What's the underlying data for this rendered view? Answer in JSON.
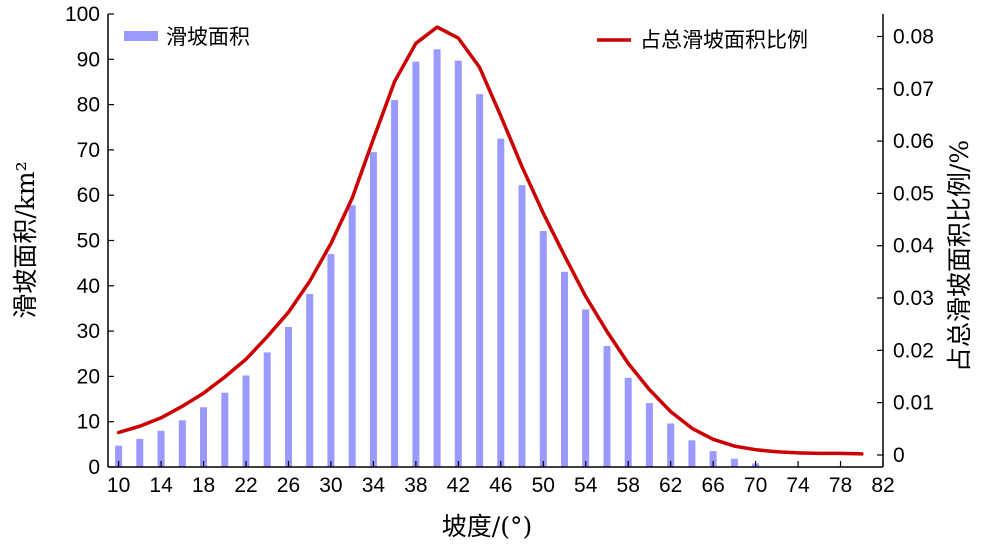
{
  "chart_data": {
    "type": "bar+line",
    "x": [
      10,
      12,
      14,
      16,
      18,
      20,
      22,
      24,
      26,
      28,
      30,
      32,
      34,
      36,
      38,
      40,
      42,
      44,
      46,
      48,
      50,
      52,
      54,
      56,
      58,
      60,
      62,
      64,
      66,
      68,
      70,
      72,
      74,
      76,
      78,
      80
    ],
    "x_tick_labels": [
      "10",
      "14",
      "18",
      "22",
      "26",
      "30",
      "34",
      "38",
      "42",
      "46",
      "50",
      "54",
      "58",
      "62",
      "66",
      "70",
      "74",
      "78",
      "82"
    ],
    "xlabel": "坡度/(°)",
    "xlim": [
      9,
      82
    ],
    "y_left": {
      "label": "滑坡面积/km²",
      "ylim": [
        0,
        100
      ],
      "ticks": [
        "0",
        "10",
        "20",
        "30",
        "40",
        "50",
        "60",
        "70",
        "80",
        "90",
        "100"
      ]
    },
    "y_right": {
      "label": "占总滑坡面积比例/%",
      "ylim": [
        -0.0023,
        0.0843
      ],
      "ticks": [
        "0",
        "0.01",
        "0.02",
        "0.03",
        "0.04",
        "0.05",
        "0.06",
        "0.07",
        "0.08"
      ]
    },
    "series": [
      {
        "name": "滑坡面积",
        "type": "bar",
        "axis": "left",
        "color": "#9999ff",
        "values": [
          4.7,
          6.2,
          8.0,
          10.3,
          13.2,
          16.4,
          20.2,
          25.3,
          30.9,
          38.2,
          47.0,
          57.8,
          69.5,
          81.0,
          89.5,
          92.2,
          89.7,
          82.3,
          72.5,
          62.2,
          52.1,
          43.1,
          34.8,
          26.7,
          19.7,
          14.1,
          9.6,
          5.9,
          3.5,
          1.8,
          0.8,
          0.0,
          0.0,
          0.0,
          0.0,
          0.0
        ]
      },
      {
        "name": "占总滑坡面积比例",
        "type": "line",
        "axis": "right",
        "color": "#cc0000",
        "values": [
          0.0043,
          0.0055,
          0.0071,
          0.0093,
          0.0118,
          0.0149,
          0.0183,
          0.0226,
          0.0273,
          0.0332,
          0.0404,
          0.0491,
          0.0604,
          0.0714,
          0.0787,
          0.0818,
          0.0797,
          0.0741,
          0.0648,
          0.0551,
          0.0462,
          0.0381,
          0.0303,
          0.0236,
          0.0175,
          0.0125,
          0.0083,
          0.0051,
          0.003,
          0.0017,
          0.001,
          0.0006,
          0.0004,
          0.0003,
          0.0003,
          0.0002
        ]
      }
    ],
    "legend": {
      "left": {
        "label": "滑坡面积",
        "placement": "top-left"
      },
      "right": {
        "label": "占总滑坡面积比例",
        "placement": "top-right"
      }
    },
    "grid": false
  }
}
